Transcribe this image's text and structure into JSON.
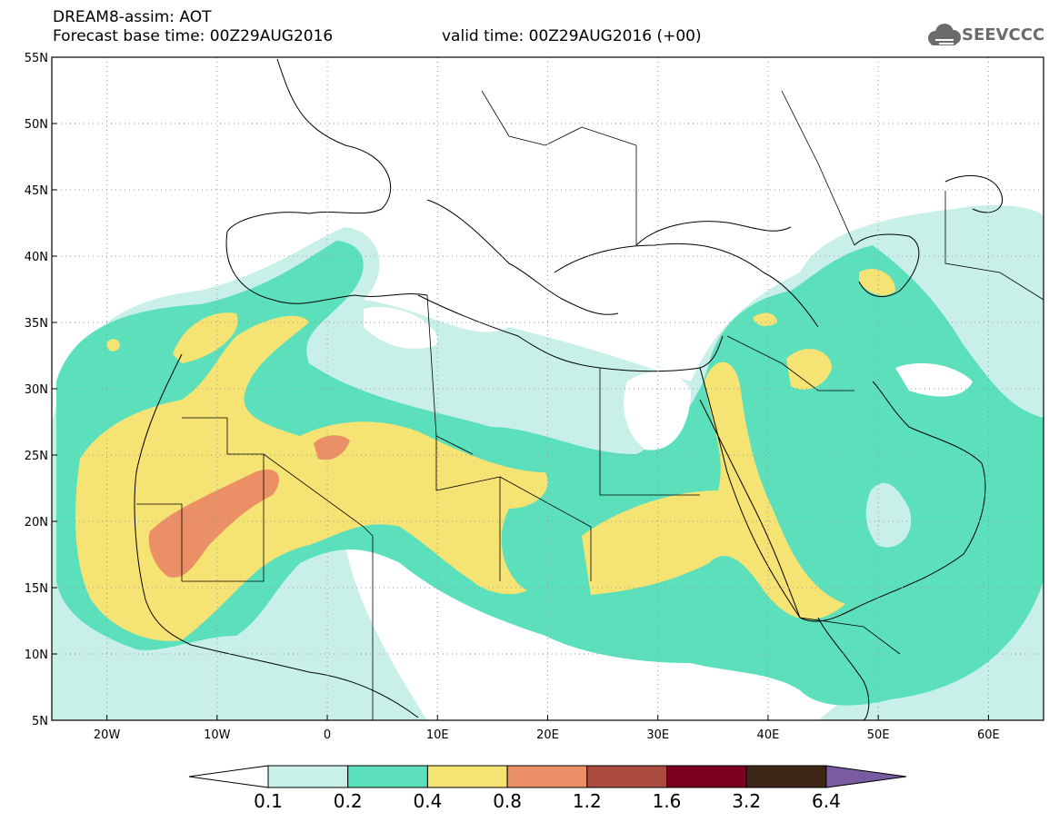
{
  "header": {
    "title_line1": "DREAM8-assim: AOT",
    "title_line2": "Forecast base time: 00Z29AUG2016",
    "valid_time": "valid time: 00Z29AUG2016 (+00)",
    "logo_text": "SEEVCCC"
  },
  "map": {
    "lat_ticks": [
      "55N",
      "50N",
      "45N",
      "40N",
      "35N",
      "30N",
      "25N",
      "20N",
      "15N",
      "10N",
      "5N"
    ],
    "lon_ticks": [
      "20W",
      "10W",
      "0",
      "10E",
      "20E",
      "30E",
      "40E",
      "50E",
      "60E"
    ],
    "lon_range": [
      -25,
      65
    ],
    "lat_range": [
      5,
      55
    ],
    "grid": true
  },
  "colorbar": {
    "labels": [
      "0.1",
      "0.2",
      "0.4",
      "0.8",
      "1.2",
      "1.6",
      "3.2",
      "6.4"
    ],
    "colors": [
      "#c8f0e8",
      "#5be0bb",
      "#f5e373",
      "#ea8f66",
      "#ab4b3f",
      "#7c0022",
      "#3d2616",
      "#7a5aa0"
    ],
    "under_color": "#ffffff"
  }
}
